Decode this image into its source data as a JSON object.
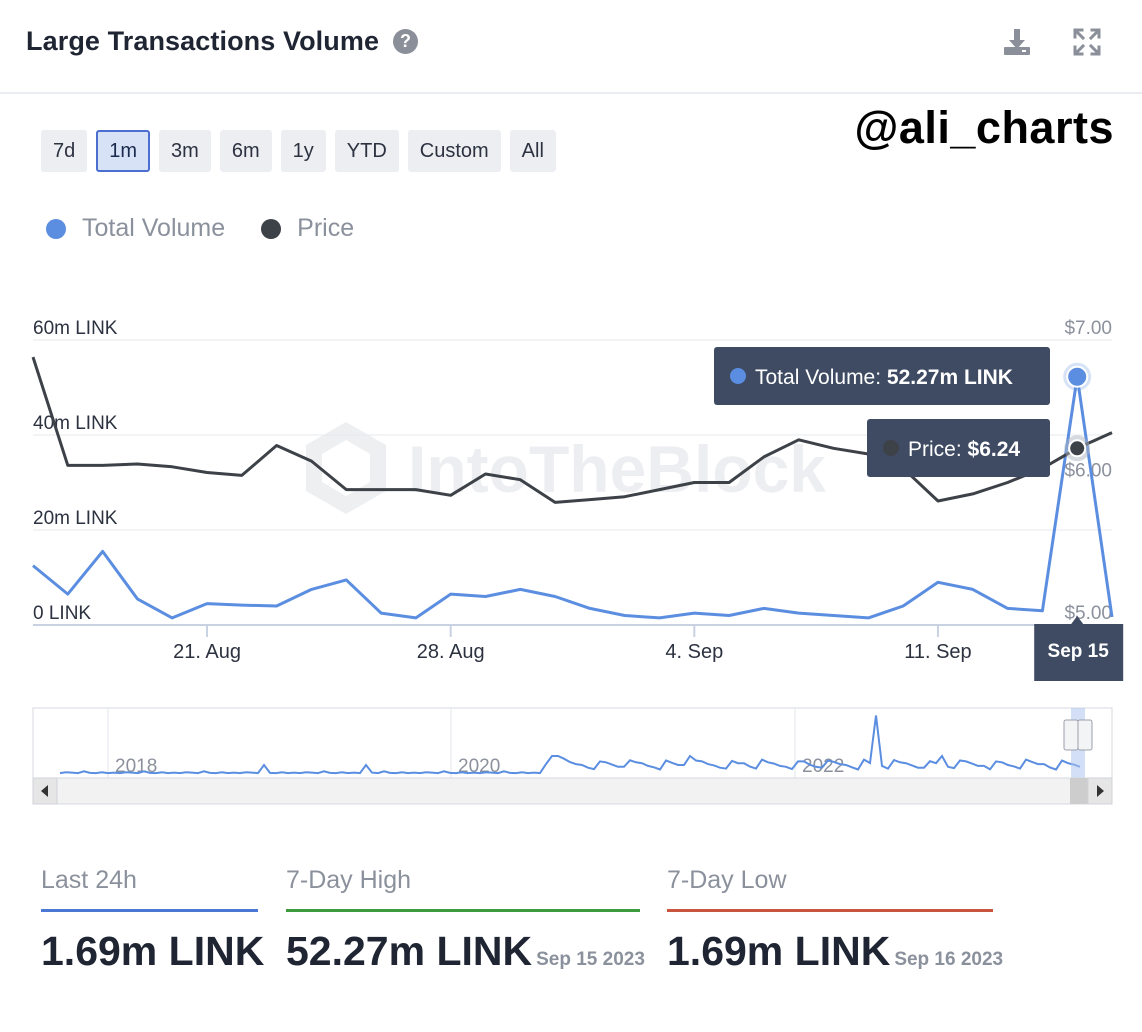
{
  "header": {
    "title": "Large Transactions Volume",
    "help_glyph": "?",
    "download_icon": "download-icon",
    "expand_icon": "expand-icon"
  },
  "watermark_handle": "@ali_charts",
  "watermark_brand": "IntoTheBlock",
  "ranges": [
    {
      "label": "7d",
      "active": false
    },
    {
      "label": "1m",
      "active": true
    },
    {
      "label": "3m",
      "active": false
    },
    {
      "label": "6m",
      "active": false
    },
    {
      "label": "1y",
      "active": false
    },
    {
      "label": "YTD",
      "active": false
    },
    {
      "label": "Custom",
      "active": false
    },
    {
      "label": "All",
      "active": false
    }
  ],
  "legend": [
    {
      "label": "Total Volume",
      "color": "#5b8ee0"
    },
    {
      "label": "Price",
      "color": "#3d4148"
    }
  ],
  "chart_data": {
    "type": "line",
    "x": [
      "Aug 16",
      "Aug 17",
      "Aug 18",
      "Aug 19",
      "Aug 20",
      "Aug 21",
      "Aug 22",
      "Aug 23",
      "Aug 24",
      "Aug 25",
      "Aug 26",
      "Aug 27",
      "Aug 28",
      "Aug 29",
      "Aug 30",
      "Aug 31",
      "Sep 1",
      "Sep 2",
      "Sep 3",
      "Sep 4",
      "Sep 5",
      "Sep 6",
      "Sep 7",
      "Sep 8",
      "Sep 9",
      "Sep 10",
      "Sep 11",
      "Sep 12",
      "Sep 13",
      "Sep 14",
      "Sep 15",
      "Sep 16"
    ],
    "series": [
      {
        "name": "Total Volume",
        "axis": "left",
        "color": "#5b8ee0",
        "values": [
          12.5,
          6.5,
          15.5,
          5.5,
          1.5,
          4.5,
          4.2,
          4.0,
          7.5,
          9.5,
          2.5,
          1.5,
          6.5,
          6.0,
          7.5,
          6.0,
          3.5,
          2.0,
          1.5,
          2.5,
          2.0,
          3.5,
          2.5,
          2.0,
          1.5,
          4.0,
          9.0,
          7.5,
          3.5,
          3.0,
          52.27,
          1.69
        ]
      },
      {
        "name": "Price",
        "axis": "right",
        "color": "#3d4148",
        "values": [
          6.88,
          6.12,
          6.12,
          6.13,
          6.11,
          6.07,
          6.05,
          6.26,
          6.15,
          5.95,
          5.95,
          5.95,
          5.91,
          6.06,
          6.02,
          5.86,
          5.88,
          5.9,
          5.95,
          6.0,
          6.0,
          6.18,
          6.3,
          6.24,
          6.2,
          6.1,
          5.87,
          5.92,
          6.0,
          6.1,
          6.24,
          6.35
        ]
      }
    ],
    "y_left": {
      "ticks": [
        "0 LINK",
        "20m LINK",
        "40m LINK",
        "60m LINK"
      ],
      "ylim": [
        0,
        60
      ]
    },
    "y_right": {
      "ticks": [
        "$5.00",
        "$6.00",
        "$7.00"
      ],
      "ylim": [
        5,
        7
      ]
    },
    "x_ticks": [
      "21. Aug",
      "28. Aug",
      "4. Sep",
      "11. Sep"
    ],
    "grid": true,
    "tooltip": {
      "date": "Sep 15",
      "volume_label": "Total Volume:",
      "volume_value": "52.27m LINK",
      "price_label": "Price:",
      "price_value": "$6.24"
    },
    "navigator": {
      "year_labels": [
        "2018",
        "2020",
        "2022"
      ]
    }
  },
  "stats": [
    {
      "label": "Last 24h",
      "value": "1.69m LINK",
      "date": "",
      "color": "#4a78d4"
    },
    {
      "label": "7-Day High",
      "value": "52.27m LINK",
      "date": "Sep 15 2023",
      "color": "#3d9a3d"
    },
    {
      "label": "7-Day Low",
      "value": "1.69m LINK",
      "date": "Sep 16 2023",
      "color": "#c9553f"
    }
  ]
}
